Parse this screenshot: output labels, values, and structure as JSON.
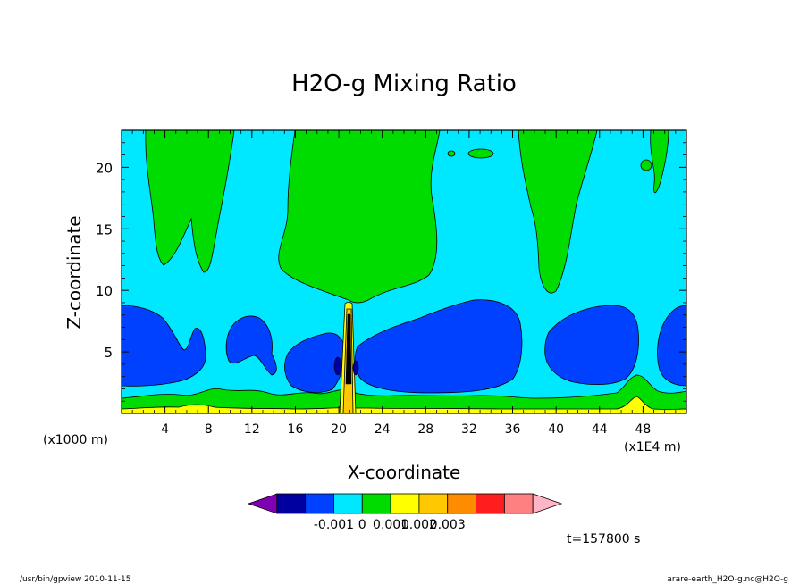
{
  "chart_data": {
    "type": "contour",
    "title": "H2O-g Mixing Ratio",
    "xlabel": "X-coordinate",
    "ylabel": "Z-coordinate",
    "x_unit_left": "(x1000 m)",
    "x_unit_right": "(x1E4 m)",
    "xlim": [
      0,
      52
    ],
    "ylim": [
      0,
      23
    ],
    "x_ticks": [
      4,
      8,
      12,
      16,
      20,
      24,
      28,
      32,
      36,
      40,
      44,
      48
    ],
    "y_ticks": [
      5,
      10,
      15,
      20
    ],
    "colorbar": {
      "colors": [
        "#7f00b2",
        "#0000a0",
        "#0040ff",
        "#00e8ff",
        "#00dc00",
        "#ffff00",
        "#ffc800",
        "#ff8c00",
        "#ff1e1e",
        "#ff8080",
        "#ffb4c8"
      ],
      "tick_labels": [
        "-0.001",
        "0",
        "0.001",
        "0.002",
        "0.003"
      ],
      "tick_boundaries": [
        3,
        4,
        5,
        6,
        7
      ]
    },
    "regions": {
      "background": "#00e8ff",
      "green": "#00dc00",
      "blue": "#0040ff",
      "dark_blue": "#0000a0",
      "yellow": "#ffff00",
      "orange": "#ffc800"
    },
    "time_label": "t=157800 s"
  },
  "footer": {
    "left": "/usr/bin/gpview   2010-11-15",
    "right": "arare-earth_H2O-g.nc@H2O-g"
  }
}
